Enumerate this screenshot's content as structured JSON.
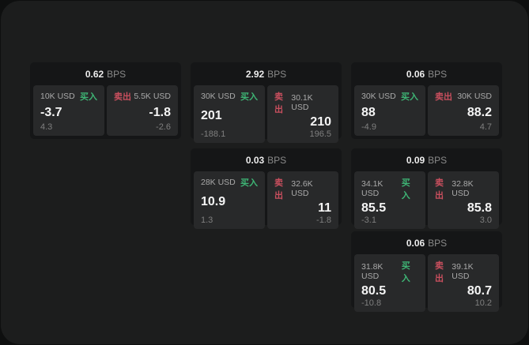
{
  "labels": {
    "unit": "BPS",
    "buy": "买入",
    "sell": "卖出"
  },
  "colors": {
    "outer_background": "#0e0f0f",
    "panel_background": "#1c1d1d",
    "card_background": "#151617",
    "tile_background": "#28292a",
    "buy_green": "#3eb575",
    "sell_red": "#c94f5e",
    "value_text": "#f5f5f5",
    "muted_text": "#8a8a8a"
  },
  "cards": [
    {
      "bps": "0.62",
      "buy": {
        "amount": "10K USD",
        "value": "-3.7",
        "sub": "4.3"
      },
      "sell": {
        "amount": "5.5K USD",
        "value": "-1.8",
        "sub": "-2.6"
      }
    },
    {
      "bps": "2.92",
      "buy": {
        "amount": "30K USD",
        "value": "201",
        "sub": "-188.1"
      },
      "sell": {
        "amount": "30.1K USD",
        "value": "210",
        "sub": "196.5"
      }
    },
    {
      "bps": "0.06",
      "buy": {
        "amount": "30K USD",
        "value": "88",
        "sub": "-4.9"
      },
      "sell": {
        "amount": "30K USD",
        "value": "88.2",
        "sub": "4.7"
      }
    },
    {
      "bps": "0.03",
      "buy": {
        "amount": "28K USD",
        "value": "10.9",
        "sub": "1.3"
      },
      "sell": {
        "amount": "32.6K USD",
        "value": "11",
        "sub": "-1.8"
      }
    },
    {
      "bps": "0.09",
      "buy": {
        "amount": "34.1K USD",
        "value": "85.5",
        "sub": "-3.1"
      },
      "sell": {
        "amount": "32.8K USD",
        "value": "85.8",
        "sub": "3.0"
      }
    },
    {
      "bps": "0.06",
      "buy": {
        "amount": "31.8K USD",
        "value": "80.5",
        "sub": "-10.8"
      },
      "sell": {
        "amount": "39.1K USD",
        "value": "80.7",
        "sub": "10.2"
      }
    }
  ]
}
